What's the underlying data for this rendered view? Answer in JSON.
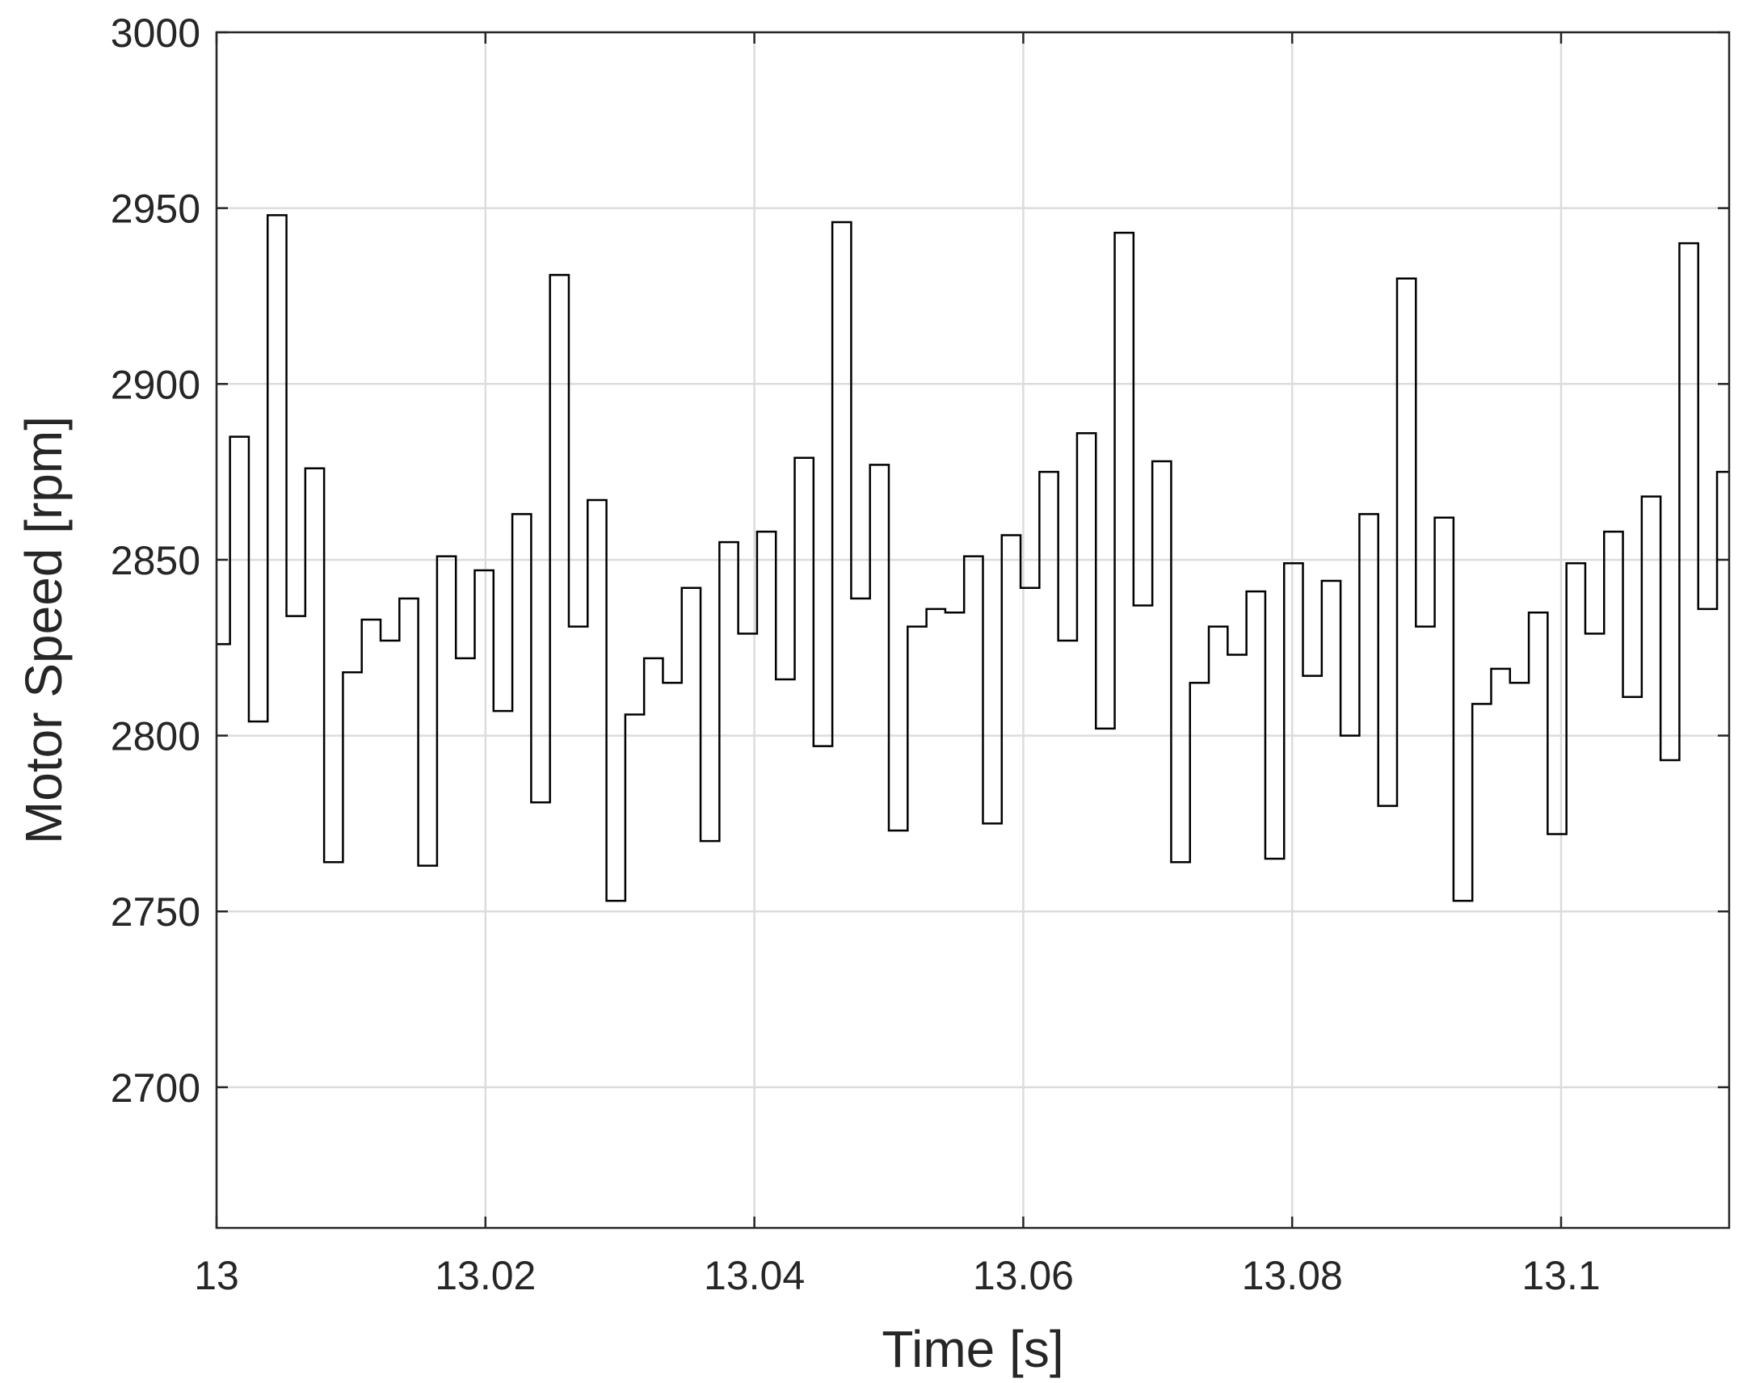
{
  "chart_data": {
    "type": "line",
    "title": "",
    "xlabel": "Time [s]",
    "ylabel": "Motor Speed [rpm]",
    "xlim": [
      13,
      13.1125
    ],
    "ylim": [
      2660,
      3000
    ],
    "xticks": [
      13,
      13.02,
      13.04,
      13.06,
      13.08,
      13.1
    ],
    "xtick_labels": [
      "13",
      "13.02",
      "13.04",
      "13.06",
      "13.08",
      "13.1"
    ],
    "yticks": [
      2700,
      2750,
      2800,
      2850,
      2900,
      2950,
      3000
    ],
    "ytick_labels": [
      "2700",
      "2750",
      "2800",
      "2850",
      "2900",
      "2950",
      "3000"
    ],
    "grid": true,
    "legend": "none",
    "step": "post",
    "series": [
      {
        "color": "#000000",
        "x": [
          13.0,
          13.001,
          13.0024,
          13.0038,
          13.0052,
          13.0066,
          13.008,
          13.0094,
          13.0108,
          13.0122,
          13.0136,
          13.015,
          13.0164,
          13.0178,
          13.0192,
          13.0206,
          13.022,
          13.0234,
          13.0248,
          13.0262,
          13.0276,
          13.029,
          13.0304,
          13.0318,
          13.0332,
          13.0346,
          13.036,
          13.0374,
          13.0388,
          13.0402,
          13.0416,
          13.043,
          13.0444,
          13.0458,
          13.0472,
          13.0486,
          13.05,
          13.0514,
          13.0528,
          13.0542,
          13.0556,
          13.057,
          13.0584,
          13.0598,
          13.0612,
          13.0626,
          13.064,
          13.0654,
          13.0668,
          13.0682,
          13.0696,
          13.071,
          13.0724,
          13.0738,
          13.0752,
          13.0766,
          13.078,
          13.0794,
          13.0808,
          13.0822,
          13.0836,
          13.085,
          13.0864,
          13.0878,
          13.0892,
          13.0906,
          13.092,
          13.0934,
          13.0948,
          13.0962,
          13.0976,
          13.099,
          13.1004,
          13.1018,
          13.1032,
          13.1046,
          13.106,
          13.1074,
          13.1088,
          13.1102,
          13.1116
        ],
        "values": [
          2826,
          2885,
          2804,
          2948,
          2834,
          2876,
          2764,
          2818,
          2833,
          2827,
          2839,
          2763,
          2851,
          2822,
          2847,
          2807,
          2863,
          2781,
          2931,
          2831,
          2867,
          2753,
          2806,
          2822,
          2815,
          2842,
          2770,
          2855,
          2829,
          2858,
          2816,
          2879,
          2797,
          2946,
          2839,
          2877,
          2773,
          2831,
          2836,
          2835,
          2851,
          2775,
          2857,
          2842,
          2875,
          2827,
          2886,
          2802,
          2943,
          2837,
          2878,
          2764,
          2815,
          2831,
          2823,
          2841,
          2765,
          2849,
          2817,
          2844,
          2800,
          2863,
          2780,
          2930,
          2831,
          2862,
          2753,
          2809,
          2819,
          2815,
          2835,
          2772,
          2849,
          2829,
          2858,
          2811,
          2868,
          2793,
          2940,
          2836,
          2875
        ]
      }
    ]
  }
}
